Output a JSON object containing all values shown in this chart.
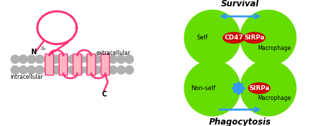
{
  "bg_color": "#ffffff",
  "hot_pink": "#FF3377",
  "pink_fill": "#FFB6C1",
  "gray_circle": "#B0B0B0",
  "green_cell": "#66DD00",
  "red_ellipse": "#CC0000",
  "blue_arrow": "#3399FF",
  "survival_title": "Survival",
  "phagocytosis_title": "Phagocytosis",
  "self_label": "Self",
  "non_self_label": "Non-self",
  "macrophage_label": "Macrophage",
  "cd47_label": "CD47",
  "sirpa_label": "SIRPa",
  "n_label": "N",
  "c_label": "C",
  "s_label": "-S-",
  "extracellular_label": "extracellular",
  "intracellular_label": "intracellular",
  "figsize": [
    4.74,
    1.79
  ],
  "dpi": 100
}
